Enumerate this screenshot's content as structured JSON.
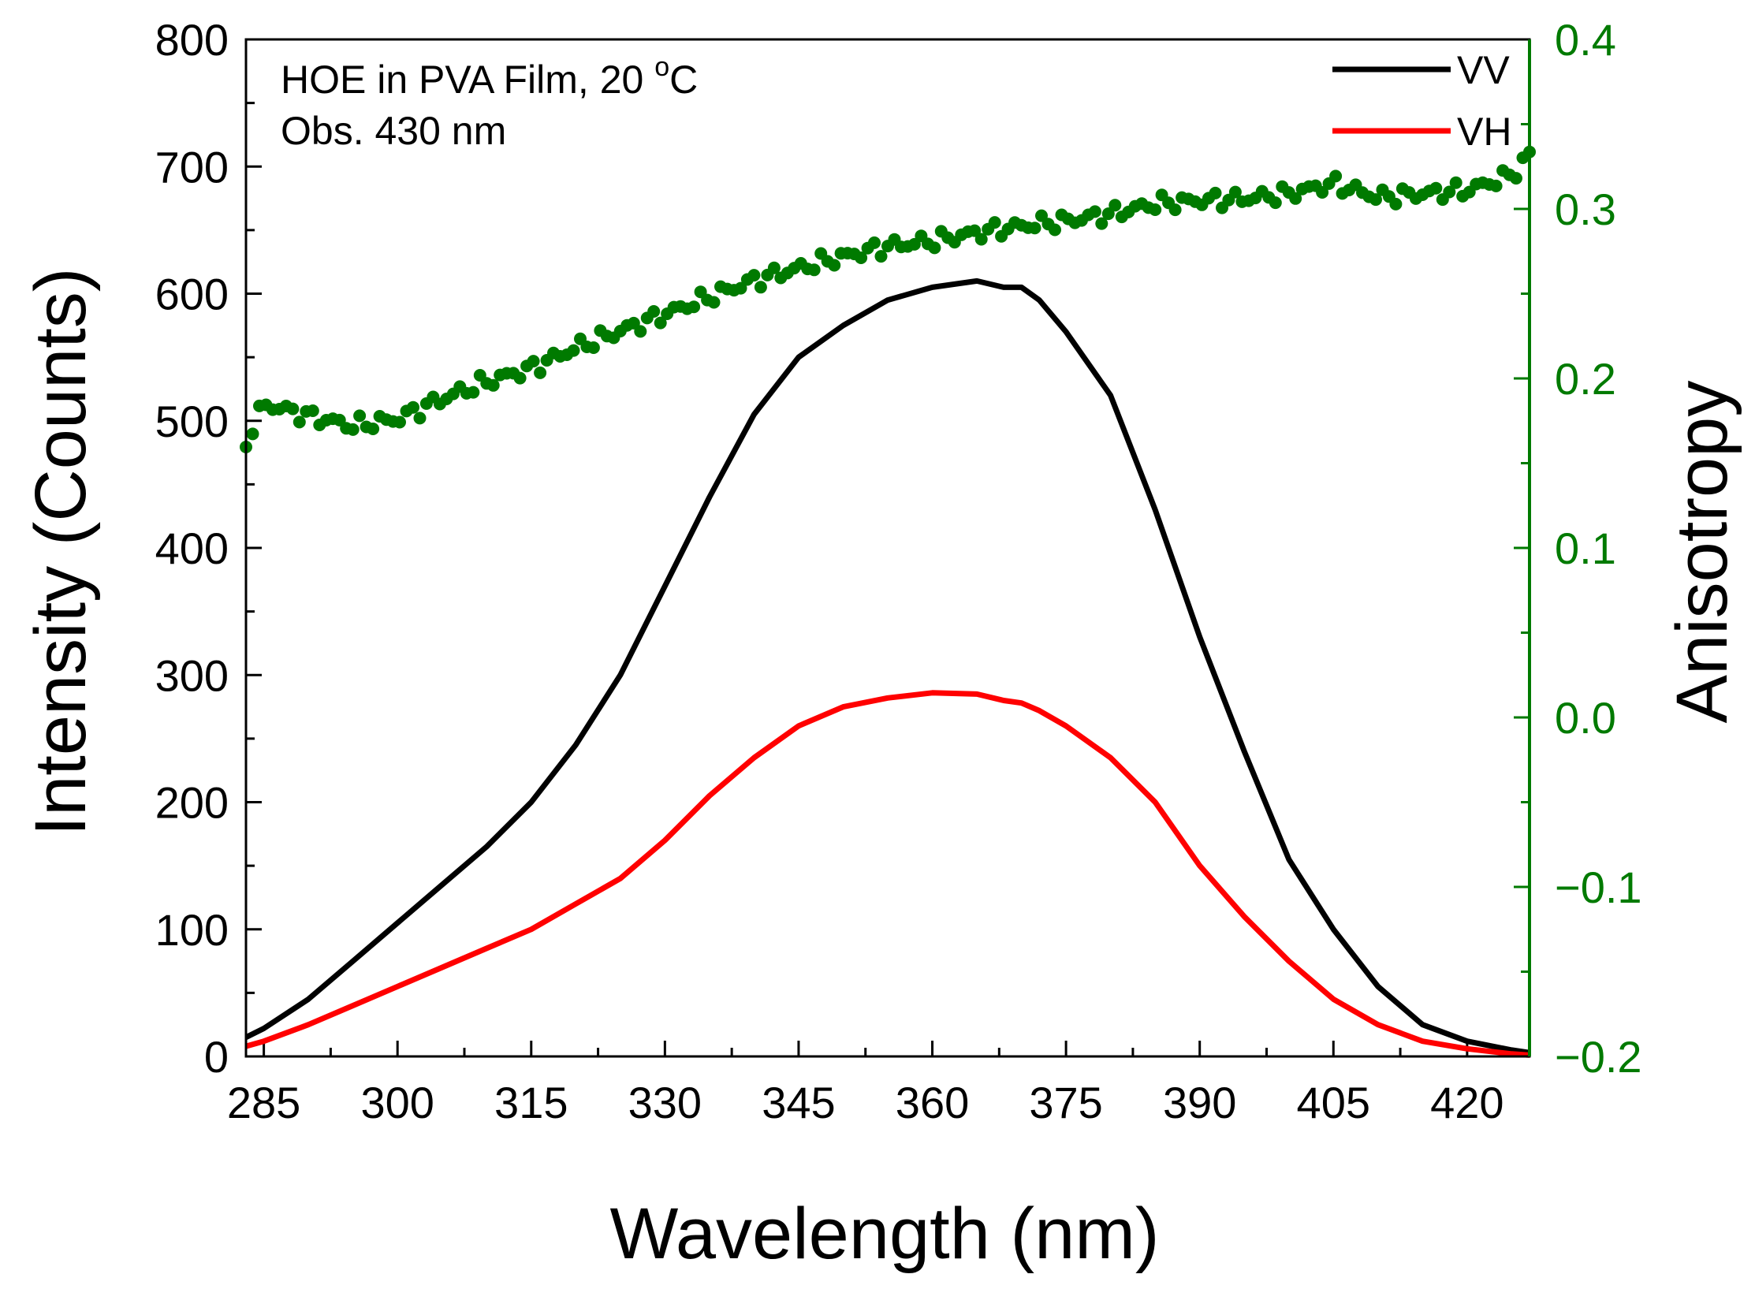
{
  "chart_data": {
    "type": "line",
    "title": "",
    "annotation": {
      "line1": "HOE in PVA Film, 20 ",
      "sup": "o",
      "unit": "C",
      "line2": "Obs. 430 nm"
    },
    "xlabel": "Wavelength (nm)",
    "ylabel": "Intensity (Counts)",
    "y2label": "Anisotropy",
    "xlim": [
      283,
      427
    ],
    "ylim": [
      0,
      800
    ],
    "y2lim": [
      -0.2,
      0.4
    ],
    "xticks": [
      285,
      300,
      315,
      330,
      345,
      360,
      375,
      390,
      405,
      420
    ],
    "yticks": [
      0,
      100,
      200,
      300,
      400,
      500,
      600,
      700,
      800
    ],
    "y2ticks": [
      -0.2,
      -0.1,
      0.0,
      0.1,
      0.2,
      0.3,
      0.4
    ],
    "y2ticklabels": [
      "−0.2",
      "−0.1",
      "0.0",
      "0.1",
      "0.2",
      "0.3",
      "0.4"
    ],
    "colors": {
      "vv": "#000000",
      "vh": "#ff0000",
      "anisotropy": "#007a00",
      "axis2": "#007a00"
    },
    "legend": {
      "position": "top-right",
      "entries": [
        "VV",
        "VH"
      ]
    },
    "x": [
      283,
      285,
      290,
      295,
      300,
      305,
      310,
      315,
      320,
      325,
      330,
      335,
      340,
      345,
      350,
      355,
      360,
      365,
      368,
      370,
      372,
      375,
      380,
      385,
      390,
      395,
      400,
      405,
      410,
      415,
      420,
      425,
      427
    ],
    "series": [
      {
        "name": "VV",
        "axis": "left",
        "values": [
          15,
          22,
          45,
          75,
          105,
          135,
          165,
          200,
          245,
          300,
          370,
          440,
          505,
          550,
          575,
          595,
          605,
          610,
          605,
          605,
          595,
          570,
          520,
          430,
          330,
          240,
          155,
          100,
          55,
          25,
          12,
          5,
          3
        ]
      },
      {
        "name": "VH",
        "axis": "left",
        "values": [
          8,
          12,
          25,
          40,
          55,
          70,
          85,
          100,
          120,
          140,
          170,
          205,
          235,
          260,
          275,
          282,
          286,
          285,
          280,
          278,
          272,
          260,
          235,
          200,
          150,
          110,
          75,
          45,
          25,
          12,
          6,
          2,
          1
        ]
      }
    ],
    "anisotropy": {
      "name": "Anisotropy",
      "axis": "right",
      "x": [
        283,
        285,
        290,
        295,
        300,
        305,
        310,
        315,
        320,
        325,
        330,
        335,
        340,
        345,
        350,
        355,
        360,
        365,
        370,
        375,
        380,
        385,
        390,
        395,
        400,
        405,
        410,
        415,
        420,
        425,
        427
      ],
      "values": [
        0.162,
        0.185,
        0.178,
        0.172,
        0.176,
        0.188,
        0.198,
        0.206,
        0.218,
        0.228,
        0.238,
        0.248,
        0.258,
        0.265,
        0.272,
        0.278,
        0.281,
        0.286,
        0.29,
        0.293,
        0.297,
        0.303,
        0.305,
        0.306,
        0.309,
        0.315,
        0.307,
        0.309,
        0.311,
        0.32,
        0.332
      ]
    }
  }
}
